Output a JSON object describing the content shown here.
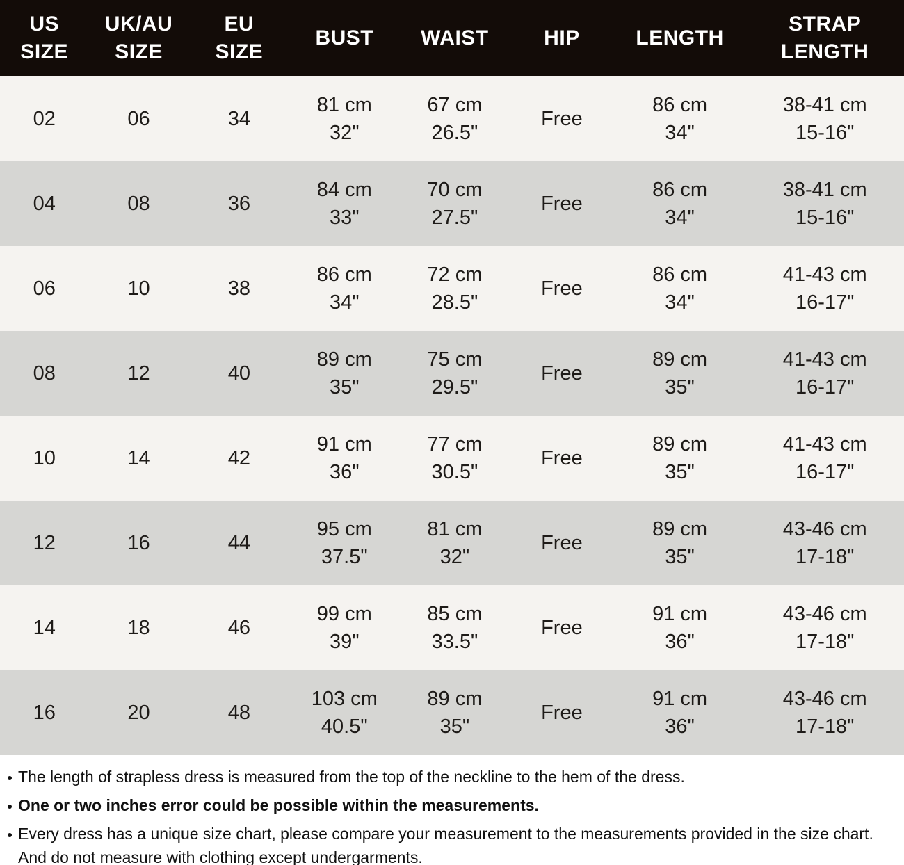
{
  "colors": {
    "header_bg": "#130c08",
    "header_text": "#ffffff",
    "row_light": "#f5f3f0",
    "row_dark": "#d6d6d3",
    "notes_bg": "#ffffff",
    "text_color": "#1e1b18"
  },
  "table": {
    "columns": [
      {
        "key": "us",
        "label_lines": [
          "US",
          "SIZE"
        ]
      },
      {
        "key": "ukau",
        "label_lines": [
          "UK/AU",
          "SIZE"
        ]
      },
      {
        "key": "eu",
        "label_lines": [
          "EU",
          "SIZE"
        ]
      },
      {
        "key": "bust",
        "label_lines": [
          "BUST"
        ]
      },
      {
        "key": "waist",
        "label_lines": [
          "WAIST"
        ]
      },
      {
        "key": "hip",
        "label_lines": [
          "HIP"
        ]
      },
      {
        "key": "length",
        "label_lines": [
          "LENGTH"
        ]
      },
      {
        "key": "strap",
        "label_lines": [
          "STRAP",
          "LENGTH"
        ]
      }
    ],
    "rows": [
      {
        "us": [
          "02"
        ],
        "ukau": [
          "06"
        ],
        "eu": [
          "34"
        ],
        "bust": [
          "81 cm",
          "32\""
        ],
        "waist": [
          "67 cm",
          "26.5\""
        ],
        "hip": [
          "Free"
        ],
        "length": [
          "86 cm",
          "34\""
        ],
        "strap": [
          "38-41 cm",
          "15-16\""
        ]
      },
      {
        "us": [
          "04"
        ],
        "ukau": [
          "08"
        ],
        "eu": [
          "36"
        ],
        "bust": [
          "84 cm",
          "33\""
        ],
        "waist": [
          "70 cm",
          "27.5\""
        ],
        "hip": [
          "Free"
        ],
        "length": [
          "86 cm",
          "34\""
        ],
        "strap": [
          "38-41 cm",
          "15-16\""
        ]
      },
      {
        "us": [
          "06"
        ],
        "ukau": [
          "10"
        ],
        "eu": [
          "38"
        ],
        "bust": [
          "86 cm",
          "34\""
        ],
        "waist": [
          "72 cm",
          "28.5\""
        ],
        "hip": [
          "Free"
        ],
        "length": [
          "86 cm",
          "34\""
        ],
        "strap": [
          "41-43 cm",
          "16-17\""
        ]
      },
      {
        "us": [
          "08"
        ],
        "ukau": [
          "12"
        ],
        "eu": [
          "40"
        ],
        "bust": [
          "89 cm",
          "35\""
        ],
        "waist": [
          "75 cm",
          "29.5\""
        ],
        "hip": [
          "Free"
        ],
        "length": [
          "89 cm",
          "35\""
        ],
        "strap": [
          "41-43 cm",
          "16-17\""
        ]
      },
      {
        "us": [
          "10"
        ],
        "ukau": [
          "14"
        ],
        "eu": [
          "42"
        ],
        "bust": [
          "91 cm",
          "36\""
        ],
        "waist": [
          "77 cm",
          "30.5\""
        ],
        "hip": [
          "Free"
        ],
        "length": [
          "89 cm",
          "35\""
        ],
        "strap": [
          "41-43 cm",
          "16-17\""
        ]
      },
      {
        "us": [
          "12"
        ],
        "ukau": [
          "16"
        ],
        "eu": [
          "44"
        ],
        "bust": [
          "95 cm",
          "37.5\""
        ],
        "waist": [
          "81 cm",
          "32\""
        ],
        "hip": [
          "Free"
        ],
        "length": [
          "89 cm",
          "35\""
        ],
        "strap": [
          "43-46 cm",
          "17-18\""
        ]
      },
      {
        "us": [
          "14"
        ],
        "ukau": [
          "18"
        ],
        "eu": [
          "46"
        ],
        "bust": [
          "99 cm",
          "39\""
        ],
        "waist": [
          "85 cm",
          "33.5\""
        ],
        "hip": [
          "Free"
        ],
        "length": [
          "91 cm",
          "36\""
        ],
        "strap": [
          "43-46 cm",
          "17-18\""
        ]
      },
      {
        "us": [
          "16"
        ],
        "ukau": [
          "20"
        ],
        "eu": [
          "48"
        ],
        "bust": [
          "103 cm",
          "40.5\""
        ],
        "waist": [
          "89 cm",
          "35\""
        ],
        "hip": [
          "Free"
        ],
        "length": [
          "91 cm",
          "36\""
        ],
        "strap": [
          "43-46 cm",
          "17-18\""
        ]
      }
    ]
  },
  "notes": [
    {
      "bold": false,
      "text": "The length of strapless dress is measured from the top of the neckline to the hem of the dress."
    },
    {
      "bold": true,
      "text": "One or two inches error could be possible within the measurements."
    },
    {
      "bold": false,
      "text": "Every dress has a unique size chart, please compare your measurement to the measurements provided in the size chart. And do not measure with clothing except undergarments."
    }
  ]
}
